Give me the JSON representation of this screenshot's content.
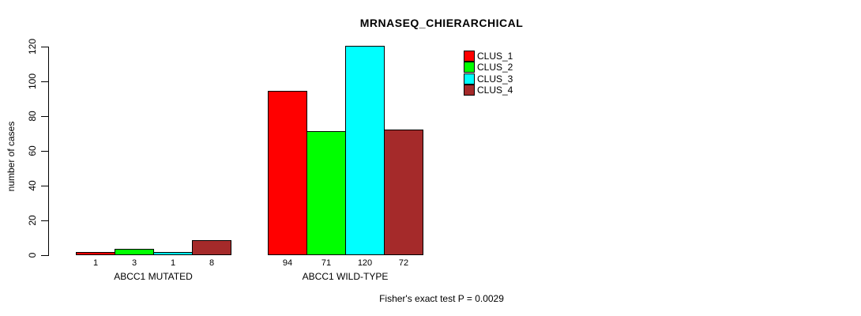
{
  "chart_data": {
    "type": "bar",
    "title": "MRNASEQ_CHIERARCHICAL",
    "xlabel": "",
    "ylabel": "number of cases",
    "ylim": [
      0,
      120
    ],
    "yticks": [
      0,
      20,
      40,
      60,
      80,
      100,
      120
    ],
    "categories": [
      "ABCC1 MUTATED",
      "ABCC1 WILD-TYPE"
    ],
    "series": [
      {
        "name": "CLUS_1",
        "color": "#FF0000",
        "values": [
          1,
          94
        ]
      },
      {
        "name": "CLUS_2",
        "color": "#00FF00",
        "values": [
          3,
          71
        ]
      },
      {
        "name": "CLUS_3",
        "color": "#00FFFF",
        "values": [
          1,
          120
        ]
      },
      {
        "name": "CLUS_4",
        "color": "#A52A2A",
        "values": [
          8,
          72
        ]
      }
    ],
    "bar_value_labels": {
      "ABCC1 MUTATED": [
        1,
        3,
        1,
        8
      ],
      "ABCC1 WILD-TYPE": [
        94,
        71,
        120,
        72
      ]
    },
    "legend_position": "top-right",
    "grid": false,
    "background_color": "#FFFFFF",
    "axis_color": "#000000",
    "annotation": "Fisher's exact test P = 0.0029"
  }
}
